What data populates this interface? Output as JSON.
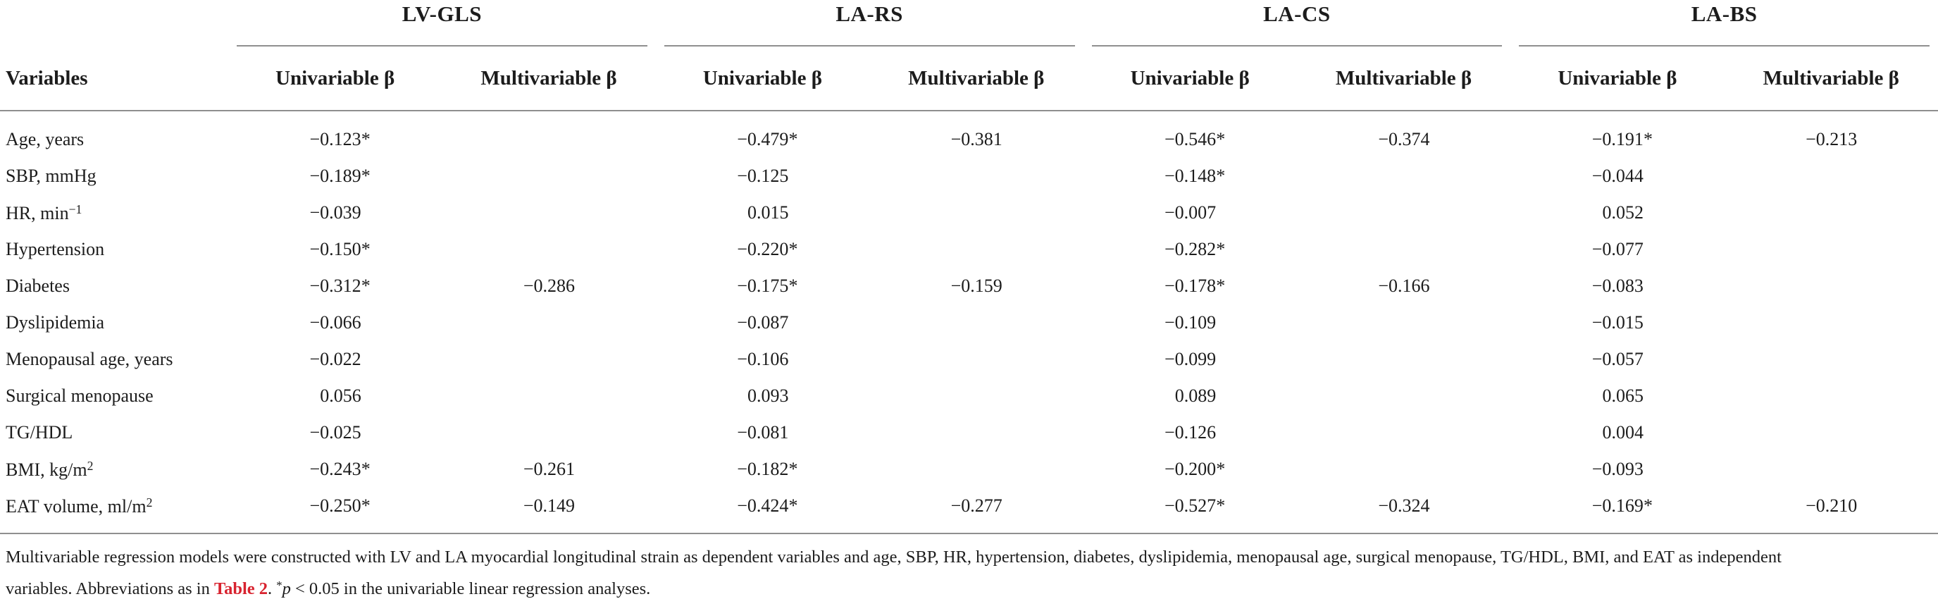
{
  "table": {
    "variables_header": "Variables",
    "groups": [
      {
        "title": "LV-GLS"
      },
      {
        "title": "LA-RS"
      },
      {
        "title": "LA-CS"
      },
      {
        "title": "LA-BS"
      }
    ],
    "subheaders": [
      "Univariable β",
      "Multivariable β"
    ],
    "rows": [
      {
        "label": "Age, years",
        "label_sup": "",
        "values": [
          "−0.123*",
          "",
          "−0.479*",
          "−0.381",
          "−0.546*",
          "−0.374",
          "−0.191*",
          "−0.213"
        ]
      },
      {
        "label": "SBP, mmHg",
        "label_sup": "",
        "values": [
          "−0.189*",
          "",
          "−0.125",
          "",
          "−0.148*",
          "",
          "−0.044",
          ""
        ]
      },
      {
        "label": "HR, min",
        "label_sup": "−1",
        "values": [
          "−0.039",
          "",
          "0.015",
          "",
          "−0.007",
          "",
          "0.052",
          ""
        ]
      },
      {
        "label": "Hypertension",
        "label_sup": "",
        "values": [
          "−0.150*",
          "",
          "−0.220*",
          "",
          "−0.282*",
          "",
          "−0.077",
          ""
        ]
      },
      {
        "label": "Diabetes",
        "label_sup": "",
        "values": [
          "−0.312*",
          "−0.286",
          "−0.175*",
          "−0.159",
          "−0.178*",
          "−0.166",
          "−0.083",
          ""
        ]
      },
      {
        "label": "Dyslipidemia",
        "label_sup": "",
        "values": [
          "−0.066",
          "",
          "−0.087",
          "",
          "−0.109",
          "",
          "−0.015",
          ""
        ]
      },
      {
        "label": "Menopausal age, years",
        "label_sup": "",
        "values": [
          "−0.022",
          "",
          "−0.106",
          "",
          "−0.099",
          "",
          "−0.057",
          ""
        ]
      },
      {
        "label": "Surgical menopause",
        "label_sup": "",
        "values": [
          "0.056",
          "",
          "0.093",
          "",
          "0.089",
          "",
          "0.065",
          ""
        ]
      },
      {
        "label": "TG/HDL",
        "label_sup": "",
        "values": [
          "−0.025",
          "",
          "−0.081",
          "",
          "−0.126",
          "",
          "0.004",
          ""
        ]
      },
      {
        "label": "BMI, kg/m",
        "label_sup": "2",
        "values": [
          "−0.243*",
          "−0.261",
          "−0.182*",
          "",
          "−0.200*",
          "",
          "−0.093",
          ""
        ]
      },
      {
        "label": "EAT volume, ml/m",
        "label_sup": "2",
        "values": [
          "−0.250*",
          "−0.149",
          "−0.424*",
          "−0.277",
          "−0.527*",
          "−0.324",
          "−0.169*",
          "−0.210"
        ]
      }
    ]
  },
  "footnote": {
    "line1": "Multivariable regression models were constructed with LV and LA myocardial longitudinal strain as dependent variables and age, SBP, HR, hypertension, diabetes, dyslipidemia, menopausal age, surgical menopause, TG/HDL, BMI, and EAT as independent",
    "line2_before_link": "variables. Abbreviations as in ",
    "link_text": "Table 2",
    "line2_after_link": ". ",
    "star": "*",
    "p_symbol": "p",
    "line2_rest": " < 0.05 in the univariable linear regression analyses."
  },
  "colors": {
    "text": "#1c1c1c",
    "rule_gray": "#8f8f8f",
    "accent_red": "#d8232f"
  }
}
